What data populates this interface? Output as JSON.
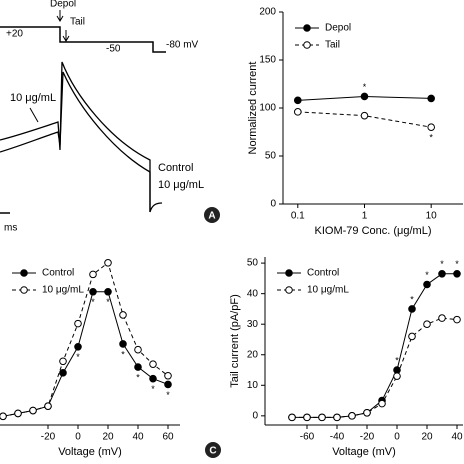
{
  "traces": {
    "labels": {
      "depol": "Depol",
      "tail": "Tail",
      "v_hold": "+20",
      "v_tail": "-50",
      "v_rest": "-80 mV",
      "drug_arrow": "10 μg/mL",
      "control": "Control",
      "drug": "10 μg/mL",
      "scale": "ms"
    },
    "panel_label": "A"
  },
  "panel_c_label": "C",
  "chart_data": [
    {
      "type": "line",
      "xlabel": "KIOM-79 Conc. (μg/mL)",
      "ylabel": "Normalized current",
      "xscale": "log",
      "x": [
        0.1,
        1,
        10
      ],
      "xlim": [
        0.06,
        30
      ],
      "xticks": [
        0.1,
        1,
        10
      ],
      "ylim": [
        0,
        200
      ],
      "yticks": [
        0,
        50,
        100,
        150,
        200
      ],
      "legend": "upper left",
      "series": [
        {
          "name": "Depol",
          "color": "#000",
          "marker": "filled",
          "dash": false,
          "values": [
            108,
            112,
            110
          ]
        },
        {
          "name": "Tail",
          "color": "#000",
          "marker": "open",
          "dash": true,
          "values": [
            96,
            92,
            80
          ]
        }
      ],
      "annotations": [
        {
          "text": "*",
          "x": 1,
          "y": 112,
          "side": "above"
        },
        {
          "text": "*",
          "x": 10,
          "y": 80,
          "side": "below"
        }
      ]
    },
    {
      "type": "line",
      "xlabel": "Voltage (mV)",
      "x": [
        -50,
        -40,
        -30,
        -20,
        -10,
        0,
        10,
        20,
        30,
        40,
        50,
        60
      ],
      "xlim": [
        -52,
        68
      ],
      "xticks": [
        -20,
        0,
        20,
        40,
        60
      ],
      "ylim": [
        -3,
        55
      ],
      "legend": "upper left",
      "series": [
        {
          "name": "Control",
          "color": "#000",
          "marker": "filled",
          "dash": false,
          "values": [
            0,
            1,
            2,
            3.5,
            15,
            24,
            43,
            43,
            25,
            17,
            13,
            11
          ]
        },
        {
          "name": "10 μg/mL",
          "color": "#000",
          "marker": "open",
          "dash": true,
          "values": [
            0,
            1,
            2,
            3.5,
            19,
            32,
            49,
            53,
            35,
            23,
            18,
            14
          ]
        }
      ],
      "annotations": [
        {
          "text": "*",
          "x": 0,
          "y": 24,
          "side": "below"
        },
        {
          "text": "*",
          "x": 10,
          "y": 43,
          "side": "below"
        },
        {
          "text": "*",
          "x": 20,
          "y": 43,
          "side": "below"
        },
        {
          "text": "*",
          "x": 30,
          "y": 25,
          "side": "below"
        },
        {
          "text": "*",
          "x": 40,
          "y": 17,
          "side": "below"
        },
        {
          "text": "*",
          "x": 50,
          "y": 13,
          "side": "below"
        },
        {
          "text": "*",
          "x": 60,
          "y": 11,
          "side": "below"
        }
      ]
    },
    {
      "type": "line",
      "xlabel": "Voltage (mV)",
      "ylabel": "Tail current (pA/pF)",
      "x": [
        -70,
        -60,
        -50,
        -40,
        -30,
        -20,
        -10,
        0,
        10,
        20,
        30,
        40
      ],
      "xlim": [
        -88,
        44
      ],
      "xticks": [
        -60,
        -40,
        -20,
        0,
        20,
        40
      ],
      "ylim": [
        -3,
        52
      ],
      "yticks": [
        0,
        10,
        20,
        30,
        40,
        50
      ],
      "legend": "upper left",
      "series": [
        {
          "name": "Control",
          "color": "#000",
          "marker": "filled",
          "dash": false,
          "values": [
            -0.5,
            -0.5,
            -0.5,
            -0.5,
            0,
            1,
            5,
            15,
            35,
            43,
            46.5,
            46.5
          ]
        },
        {
          "name": "10 μg/mL",
          "color": "#000",
          "marker": "open",
          "dash": true,
          "values": [
            -0.5,
            -0.5,
            -0.5,
            -0.5,
            0,
            1,
            4,
            13,
            26,
            30,
            32,
            31.5
          ]
        }
      ],
      "annotations": [
        {
          "text": "*",
          "x": 0,
          "y": 15,
          "side": "above"
        },
        {
          "text": "*",
          "x": 10,
          "y": 35,
          "side": "above"
        },
        {
          "text": "*",
          "x": 20,
          "y": 43,
          "side": "above"
        },
        {
          "text": "*",
          "x": 30,
          "y": 46.5,
          "side": "above"
        },
        {
          "text": "*",
          "x": 40,
          "y": 46.5,
          "side": "above"
        }
      ]
    }
  ]
}
